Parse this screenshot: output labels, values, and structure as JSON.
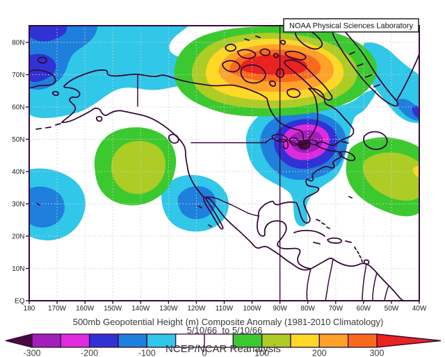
{
  "branding": {
    "lab": "NOAA Physical Sciences Laboratory"
  },
  "titles": {
    "main": "500mb Geopotential Height (m) Composite Anomaly (1981-2010 Climatology)",
    "dates": "5/10/66  to 5/10/66",
    "source": "NCEP/NCAR Reanalysis"
  },
  "axes": {
    "lat_labels": [
      "EQ",
      "10N",
      "20N",
      "30N",
      "40N",
      "50N",
      "60N",
      "70N",
      "80N"
    ],
    "lon_labels": [
      "180",
      "170W",
      "160W",
      "150W",
      "140W",
      "130W",
      "120W",
      "110W",
      "100W",
      "90W",
      "80W",
      "70W",
      "60W",
      "50W",
      "40W"
    ]
  },
  "colorbar": {
    "labels": [
      "-300",
      "-200",
      "-100",
      "0",
      "100",
      "200",
      "300"
    ],
    "segment_colors": [
      "#A21FB8",
      "#DE2BDE",
      "#3032D4",
      "#1F7FDC",
      "#30C7E8",
      "#FFFFFF",
      "#FFFFFF",
      "#3CC92F",
      "#ADCC26",
      "#FFD826",
      "#FEA22A",
      "#F9691C"
    ],
    "below_min_color": "#460B40",
    "above_max_color": "#E9231F"
  },
  "palette": {
    "outline": "#350A38",
    "cyan": "#30C7E8",
    "blue": "#1F7FDC",
    "indigo": "#3032D4",
    "magenta": "#DE2BDE",
    "purple": "#A21FB8",
    "dark_purple": "#460B40",
    "green": "#3CC92F",
    "yellow_green": "#ADCC26",
    "yellow": "#FFD826",
    "orange": "#FEA22A",
    "deep_orange": "#F9691C",
    "red": "#E9231F",
    "gridline": "#CFCFCF"
  },
  "chart_data": {
    "type": "heatmap",
    "title": "500mb Geopotential Height (m) Composite Anomaly (1981-2010 Climatology)",
    "date_range": "5/10/66 to 5/10/66",
    "source": "NCEP/NCAR Reanalysis",
    "variable": "500mb geopotential height composite anomaly",
    "units": "m",
    "climatology": "1981-2010",
    "lat_range": [
      "EQ",
      "85N"
    ],
    "lon_range": [
      "180",
      "40W"
    ],
    "contour_interval": 50,
    "scale_range": [
      -300,
      300
    ],
    "reference_line": "solid meridian at 90W",
    "grid": "dotted graticule every 10 degrees",
    "anomaly_centers": [
      {
        "location": "Canadian Arctic Archipelago",
        "sign": "positive",
        "value_m": "> 300"
      },
      {
        "location": "Great Lakes / northeastern United States",
        "sign": "negative",
        "value_m": "< -300"
      },
      {
        "location": "Bering Sea / northeast Siberia and Arctic west",
        "sign": "negative",
        "value_m": "-150 to -200"
      },
      {
        "location": "US west coast (eastern North Pacific)",
        "sign": "positive",
        "value_m": "100 to 150"
      },
      {
        "location": "central subtropical North Pacific",
        "sign": "negative",
        "value_m": "-100 to -150"
      },
      {
        "location": "off Baja California",
        "sign": "negative",
        "value_m": "-100 to -150"
      },
      {
        "location": "western Atlantic (30-45N)",
        "sign": "positive",
        "value_m": "150 to 200"
      },
      {
        "location": "Labrador Sea / northwest Atlantic",
        "sign": "negative",
        "value_m": "-150 to -200"
      }
    ]
  }
}
